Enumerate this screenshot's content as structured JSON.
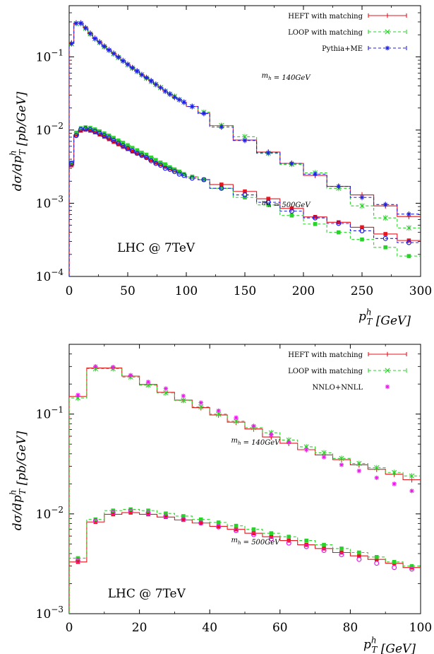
{
  "chart_data": [
    {
      "type": "line",
      "subtype": "step-histogram",
      "ylabel": "dσ/dp_T^h [pb/GeV]",
      "xlabel": "p_T^h [GeV]",
      "xlim": [
        0,
        300
      ],
      "ylim": [
        0.0001,
        0.5
      ],
      "yscale": "log",
      "x_ticks": [
        "0",
        "50",
        "100",
        "150",
        "200",
        "250",
        "300"
      ],
      "y_ticks": [
        {
          "value": 0.0001,
          "label": "10−4"
        },
        {
          "value": 0.001,
          "label": "10−3"
        },
        {
          "value": 0.01,
          "label": "10−2"
        },
        {
          "value": 0.1,
          "label": "10−1"
        }
      ],
      "annotations": [
        {
          "text": "m_h = 140GeV",
          "x": 185,
          "y": 0.052
        },
        {
          "text": "m_h = 500GeV",
          "x": 185,
          "y": 0.00095
        },
        {
          "text": "LHC @ 7TeV",
          "x": 35,
          "y": 0.00025
        }
      ],
      "legend": {
        "position": "top-right",
        "entries": [
          "HEFT with matching",
          "LOOP with matching",
          "Pythia+ME"
        ]
      },
      "bin_edges": [
        0,
        4,
        8,
        12,
        16,
        20,
        24,
        28,
        32,
        36,
        40,
        44,
        48,
        52,
        56,
        60,
        64,
        68,
        72,
        76,
        80,
        84,
        88,
        92,
        96,
        100,
        110,
        120,
        140,
        160,
        180,
        200,
        220,
        240,
        260,
        280,
        300
      ],
      "series": [
        {
          "name": "HEFT with matching",
          "group": "140GeV",
          "color": "#e8141e",
          "marker": "plus",
          "dash": false,
          "values": [
            0.155,
            0.29,
            0.29,
            0.25,
            0.21,
            0.18,
            0.16,
            0.14,
            0.125,
            0.112,
            0.1,
            0.089,
            0.079,
            0.071,
            0.064,
            0.057,
            0.052,
            0.047,
            0.042,
            0.038,
            0.034,
            0.031,
            0.028,
            0.026,
            0.024,
            0.021,
            0.017,
            0.0115,
            0.0073,
            0.005,
            0.0035,
            0.0024,
            0.0017,
            0.0013,
            0.00092,
            0.00066
          ]
        },
        {
          "name": "LOOP with matching",
          "group": "140GeV",
          "color": "#2bd12b",
          "marker": "x",
          "dash": true,
          "values": [
            0.15,
            0.285,
            0.285,
            0.245,
            0.205,
            0.176,
            0.157,
            0.137,
            0.123,
            0.11,
            0.098,
            0.088,
            0.078,
            0.07,
            0.063,
            0.057,
            0.051,
            0.046,
            0.042,
            0.038,
            0.034,
            0.031,
            0.029,
            0.026,
            0.024,
            0.021,
            0.0175,
            0.0115,
            0.0081,
            0.0048,
            0.0034,
            0.0026,
            0.0016,
            0.00092,
            0.00063,
            0.00046
          ]
        },
        {
          "name": "Pythia+ME",
          "group": "140GeV",
          "color": "#1f1fe0",
          "marker": "star",
          "dash": true,
          "values": [
            0.152,
            0.288,
            0.288,
            0.248,
            0.208,
            0.178,
            0.158,
            0.139,
            0.124,
            0.111,
            0.099,
            0.088,
            0.079,
            0.071,
            0.064,
            0.057,
            0.052,
            0.047,
            0.042,
            0.038,
            0.034,
            0.031,
            0.028,
            0.026,
            0.024,
            0.021,
            0.0168,
            0.011,
            0.0072,
            0.0049,
            0.0035,
            0.0025,
            0.0017,
            0.0012,
            0.00096,
            0.00071
          ]
        },
        {
          "name": "HEFT with matching",
          "group": "500GeV",
          "color": "#e8141e",
          "marker": "square",
          "dash": false,
          "values": [
            0.0033,
            0.0086,
            0.0098,
            0.0101,
            0.0098,
            0.0093,
            0.0087,
            0.0081,
            0.0075,
            0.0069,
            0.0064,
            0.0059,
            0.0055,
            0.0051,
            0.0048,
            0.0045,
            0.0042,
            0.0039,
            0.0036,
            0.0034,
            0.0032,
            0.003,
            0.0028,
            0.0027,
            0.0025,
            0.0023,
            0.0021,
            0.0018,
            0.00145,
            0.00115,
            0.00085,
            0.00065,
            0.00055,
            0.00047,
            0.00038,
            0.00031
          ]
        },
        {
          "name": "LOOP with matching",
          "group": "500GeV",
          "color": "#2bd12b",
          "marker": "square",
          "dash": true,
          "values": [
            0.0036,
            0.0092,
            0.0106,
            0.0109,
            0.0107,
            0.0102,
            0.0096,
            0.009,
            0.0084,
            0.0078,
            0.0072,
            0.0067,
            0.0062,
            0.0057,
            0.0053,
            0.0049,
            0.0046,
            0.0042,
            0.0039,
            0.0036,
            0.0034,
            0.0031,
            0.0029,
            0.0027,
            0.0025,
            0.0023,
            0.0021,
            0.0016,
            0.0012,
            0.00095,
            0.00068,
            0.00052,
            0.0004,
            0.00032,
            0.00025,
            0.00019
          ]
        },
        {
          "name": "Pythia+ME",
          "group": "500GeV",
          "color": "#1f1fe0",
          "marker": "circle",
          "dash": true,
          "values": [
            0.0035,
            0.0084,
            0.0102,
            0.0104,
            0.0101,
            0.0096,
            0.009,
            0.0084,
            0.0078,
            0.0072,
            0.0066,
            0.0061,
            0.0056,
            0.0052,
            0.0048,
            0.0045,
            0.0042,
            0.0038,
            0.0035,
            0.0033,
            0.003,
            0.0029,
            0.0027,
            0.0025,
            0.0024,
            0.0022,
            0.0021,
            0.0016,
            0.0013,
            0.00103,
            0.00078,
            0.00063,
            0.00053,
            0.00042,
            0.00033,
            0.00029
          ]
        }
      ]
    },
    {
      "type": "line",
      "subtype": "step-histogram",
      "ylabel": "dσ/dp_T^h [pb/GeV]",
      "xlabel": "p_T^h [GeV]",
      "xlim": [
        0,
        100
      ],
      "ylim": [
        0.001,
        0.5
      ],
      "yscale": "log",
      "x_ticks": [
        "0",
        "20",
        "40",
        "60",
        "80",
        "100"
      ],
      "y_ticks": [
        {
          "value": 0.001,
          "label": "10−3"
        },
        {
          "value": 0.01,
          "label": "10−2"
        },
        {
          "value": 0.1,
          "label": "10−1"
        }
      ],
      "annotations": [
        {
          "text": "m_h = 140GeV",
          "x": 53,
          "y": 0.052
        },
        {
          "text": "m_h = 500GeV",
          "x": 53,
          "y": 0.0052
        },
        {
          "text": "LHC @ 7TeV",
          "x": 11,
          "y": 0.0016
        }
      ],
      "legend": {
        "position": "top-right",
        "entries": [
          "HEFT with matching",
          "LOOP with matching",
          "NNLO+NNLL"
        ]
      },
      "bin_edges": [
        0,
        5,
        10,
        15,
        20,
        25,
        30,
        35,
        40,
        45,
        50,
        55,
        60,
        65,
        70,
        75,
        80,
        85,
        90,
        95,
        100
      ],
      "series": [
        {
          "name": "HEFT with matching",
          "group": "140GeV",
          "color": "#e8141e",
          "marker": "plus",
          "dash": false,
          "values": [
            0.15,
            0.29,
            0.29,
            0.24,
            0.198,
            0.165,
            0.138,
            0.116,
            0.098,
            0.083,
            0.071,
            0.059,
            0.051,
            0.044,
            0.039,
            0.035,
            0.031,
            0.028,
            0.025,
            0.022
          ]
        },
        {
          "name": "LOOP with matching",
          "group": "140GeV",
          "color": "#2bd12b",
          "marker": "x",
          "dash": true,
          "values": [
            0.145,
            0.285,
            0.285,
            0.235,
            0.195,
            0.163,
            0.137,
            0.118,
            0.1,
            0.085,
            0.073,
            0.065,
            0.055,
            0.047,
            0.041,
            0.036,
            0.032,
            0.029,
            0.026,
            0.024
          ]
        },
        {
          "name": "NNLO+NNLL",
          "group": "140GeV",
          "color": "#ea18ea",
          "marker": "star",
          "dash": false,
          "points_only": true,
          "values": [
            0.155,
            0.3,
            0.295,
            0.245,
            0.21,
            0.18,
            0.152,
            0.13,
            0.108,
            0.092,
            0.076,
            0.062,
            0.052,
            0.044,
            0.037,
            0.031,
            0.027,
            0.023,
            0.02,
            0.017
          ]
        },
        {
          "name": "HEFT with matching",
          "group": "500GeV",
          "color": "#e8141e",
          "marker": "square",
          "dash": false,
          "values": [
            0.0033,
            0.0083,
            0.0099,
            0.0103,
            0.0099,
            0.0093,
            0.0087,
            0.0081,
            0.0075,
            0.007,
            0.0064,
            0.0059,
            0.0054,
            0.0049,
            0.0045,
            0.0041,
            0.0038,
            0.0035,
            0.0032,
            0.0029
          ]
        },
        {
          "name": "LOOP with matching",
          "group": "500GeV",
          "color": "#2bd12b",
          "marker": "square",
          "dash": true,
          "values": [
            0.0036,
            0.0088,
            0.0108,
            0.0111,
            0.0108,
            0.0101,
            0.0095,
            0.0088,
            0.0082,
            0.0076,
            0.007,
            0.0064,
            0.0059,
            0.0054,
            0.0049,
            0.0045,
            0.0041,
            0.0037,
            0.0033,
            0.003
          ]
        },
        {
          "name": "NNLO+NNLL",
          "group": "500GeV",
          "color": "#ea18ea",
          "marker": "circle",
          "dash": false,
          "points_only": true,
          "values": [
            0.0034,
            0.0085,
            0.0103,
            0.0107,
            0.0102,
            0.0095,
            0.0088,
            0.0081,
            0.0074,
            0.0068,
            0.0062,
            0.0056,
            0.0051,
            0.0047,
            0.0043,
            0.0039,
            0.0035,
            0.0032,
            0.0029,
            0.0028
          ]
        }
      ]
    }
  ]
}
